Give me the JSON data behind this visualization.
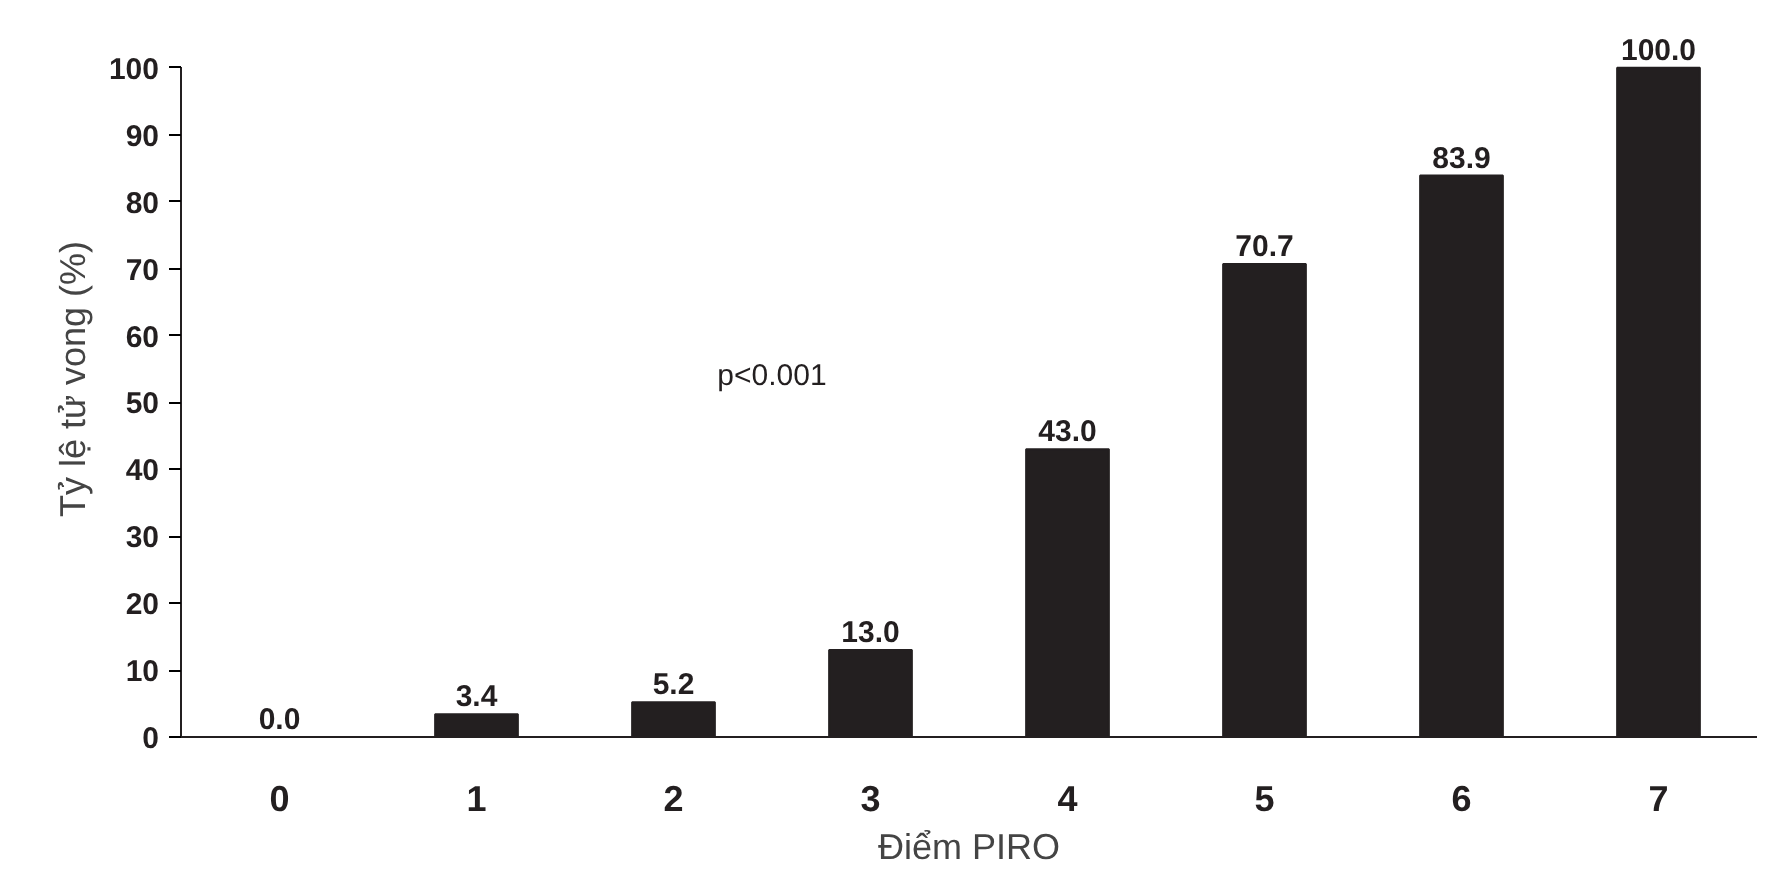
{
  "chart_data": {
    "type": "bar",
    "xlabel": "Điểm PIRO",
    "ylabel": "Tỷ lệ tử vong (%)",
    "categories": [
      "0",
      "1",
      "2",
      "3",
      "4",
      "5",
      "6",
      "7"
    ],
    "values": [
      0.0,
      3.4,
      5.2,
      13.0,
      43.0,
      70.7,
      83.9,
      100.0
    ],
    "value_labels": [
      "0.0",
      "3.4",
      "5.2",
      "13.0",
      "43.0",
      "70.7",
      "83.9",
      "100.0"
    ],
    "color": "#231f20",
    "ylim": [
      0,
      100
    ],
    "yticks": [
      0,
      10,
      20,
      30,
      40,
      50,
      60,
      70,
      80,
      90,
      100
    ],
    "grid": false,
    "annotations": [
      "p<0.001"
    ]
  }
}
